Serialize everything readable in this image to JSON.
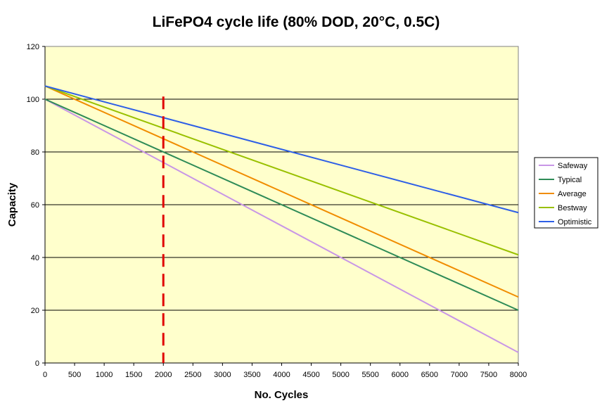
{
  "chart_data": {
    "type": "line",
    "title": "LiFePO4 cycle life (80% DOD, 20°C, 0.5C)",
    "xlabel": "No. Cycles",
    "ylabel": "Capacity",
    "xlim": [
      0,
      8000
    ],
    "ylim": [
      0,
      120
    ],
    "x_ticks": [
      0,
      500,
      1000,
      1500,
      2000,
      2500,
      3000,
      3500,
      4000,
      4500,
      5000,
      5500,
      6000,
      6500,
      7000,
      7500,
      8000
    ],
    "y_ticks": [
      0,
      20,
      40,
      60,
      80,
      100,
      120
    ],
    "grid": "horizontal",
    "plot_background": "#FFFFCC",
    "legend_position": "right",
    "series": [
      {
        "name": "Safeway",
        "color": "#C896E6",
        "x": [
          0,
          8000
        ],
        "y": [
          100,
          4
        ]
      },
      {
        "name": "Typical",
        "color": "#2E8B57",
        "x": [
          0,
          8000
        ],
        "y": [
          100,
          20
        ]
      },
      {
        "name": "Average",
        "color": "#F08C00",
        "x": [
          0,
          8000
        ],
        "y": [
          105,
          25
        ]
      },
      {
        "name": "Bestway",
        "color": "#99C000",
        "x": [
          0,
          8000
        ],
        "y": [
          105,
          41
        ]
      },
      {
        "name": "Optimistic",
        "color": "#2E5FE6",
        "x": [
          0,
          8000
        ],
        "y": [
          105,
          57
        ]
      }
    ],
    "reference_line": {
      "x": 2000,
      "y_range": [
        0,
        101
      ],
      "color": "#E00000",
      "style": "dashed"
    }
  }
}
